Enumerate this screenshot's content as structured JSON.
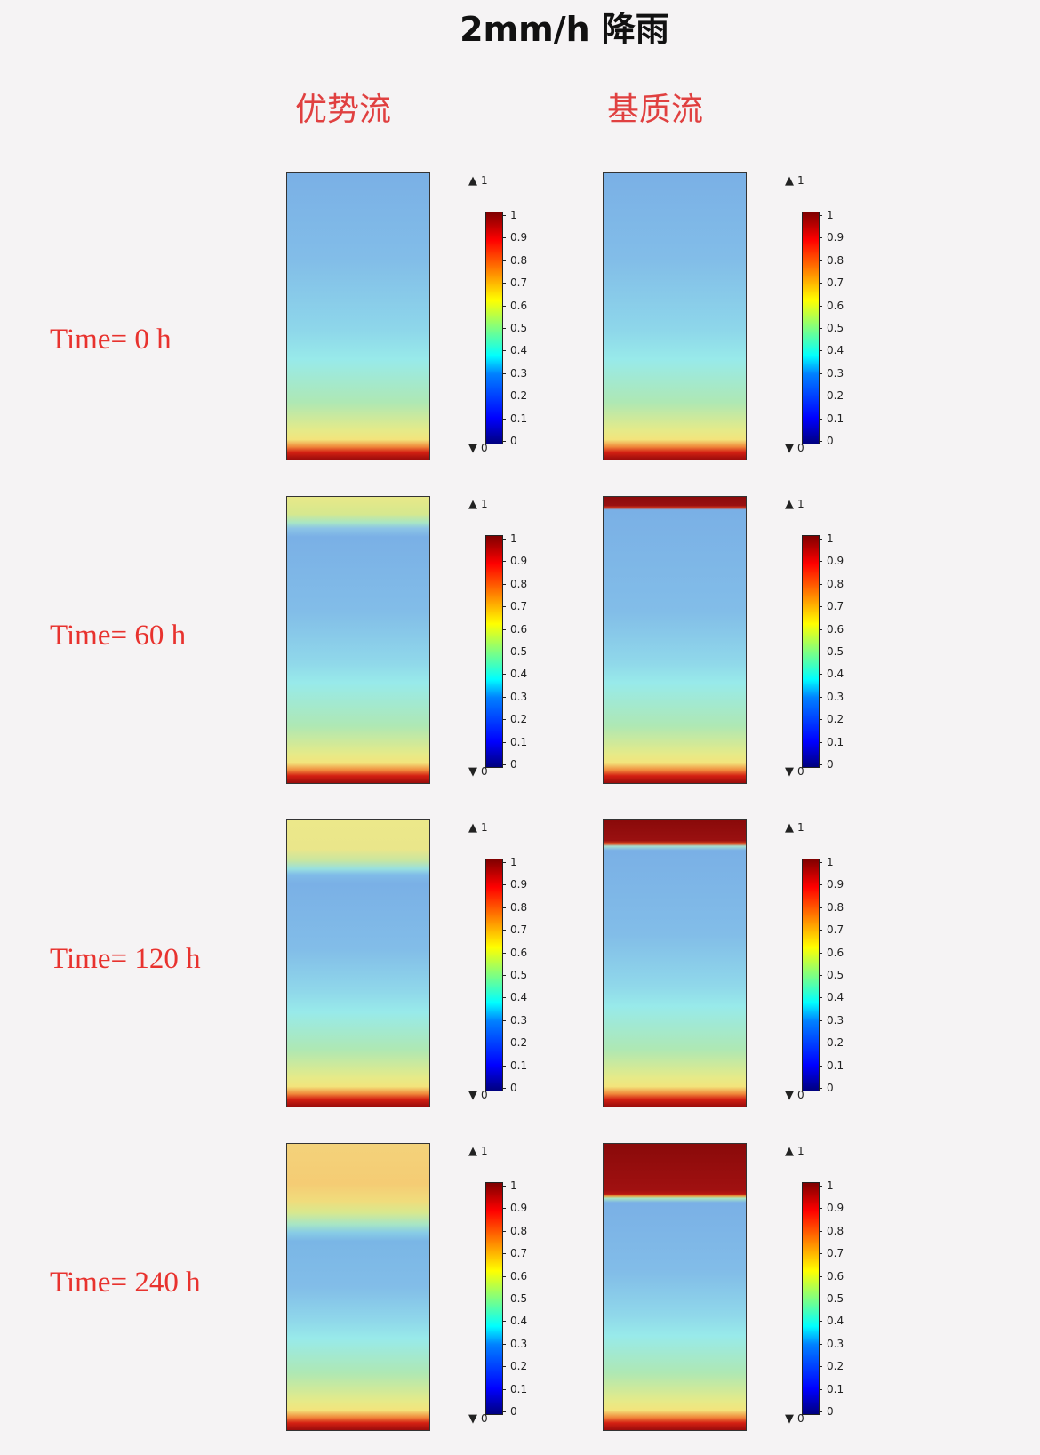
{
  "title": "2mm/h 降雨",
  "columns": [
    {
      "label": "优势流"
    },
    {
      "label": "基质流"
    }
  ],
  "rows": [
    {
      "label": "Time= 0 h"
    },
    {
      "label": "Time= 60 h"
    },
    {
      "label": "Time= 120 h"
    },
    {
      "label": "Time= 240 h"
    }
  ],
  "legend": {
    "max_marker": "1",
    "min_marker": "0",
    "ticks": [
      "1",
      "0.9",
      "0.8",
      "0.7",
      "0.6",
      "0.5",
      "0.4",
      "0.3",
      "0.2",
      "0.1",
      "0"
    ],
    "range": [
      0,
      1
    ]
  },
  "colors": {
    "label_red": "#e8322e",
    "dark_red": "#8a0a0a"
  }
}
